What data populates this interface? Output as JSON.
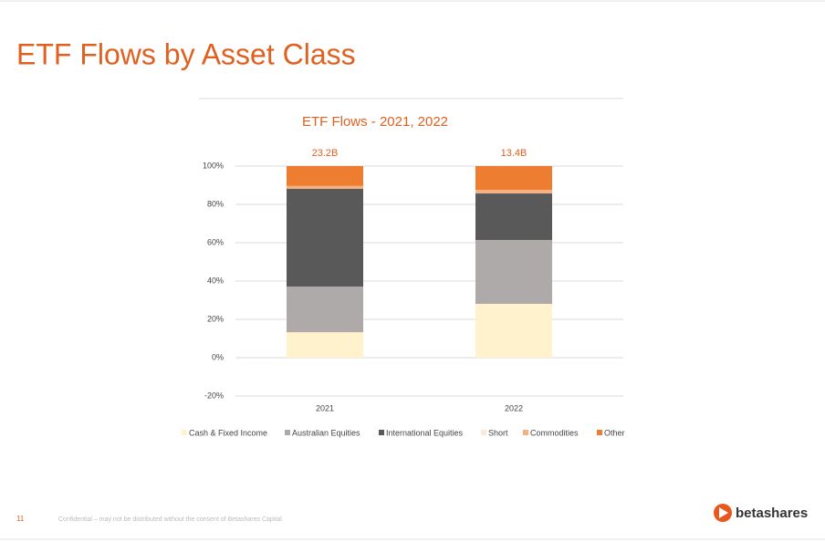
{
  "slide_title": "ETF Flows by Asset Class",
  "page_number": "11",
  "footer": "Confidential – may not be distributed without the consent of Betashares Capital",
  "logo": "betashares",
  "chart_data": {
    "type": "stacked_bar",
    "title": "ETF Flows - 2021, 2022",
    "categories": [
      "2021",
      "2022"
    ],
    "annotations": [
      "23.2B",
      "13.4B"
    ],
    "series": [
      {
        "name": "Cash & Fixed Income",
        "color": "#fff2cc",
        "values": [
          13.3,
          28.1
        ]
      },
      {
        "name": "Australian Equities",
        "color": "#aeaaaa",
        "values": [
          23.8,
          33.3
        ]
      },
      {
        "name": "International Equities",
        "color": "#595959",
        "values": [
          51.0,
          24.3
        ]
      },
      {
        "name": "Short",
        "color": "#fde9d9",
        "values": [
          0,
          0
        ]
      },
      {
        "name": "Commodities",
        "color": "#f4b183",
        "values": [
          1.5,
          1.9
        ]
      },
      {
        "name": "Other",
        "color": "#ed7d31",
        "values": [
          10.4,
          12.4
        ]
      }
    ],
    "ylim": [
      -20,
      100
    ],
    "yticks": [
      {
        "value": -20,
        "label": "-20%"
      },
      {
        "value": 0,
        "label": "0%"
      },
      {
        "value": 20,
        "label": "20%"
      },
      {
        "value": 40,
        "label": "40%"
      },
      {
        "value": 60,
        "label": "60%"
      },
      {
        "value": 80,
        "label": "80%"
      },
      {
        "value": 100,
        "label": "100%"
      }
    ],
    "grid": true,
    "legend": "bottom"
  }
}
